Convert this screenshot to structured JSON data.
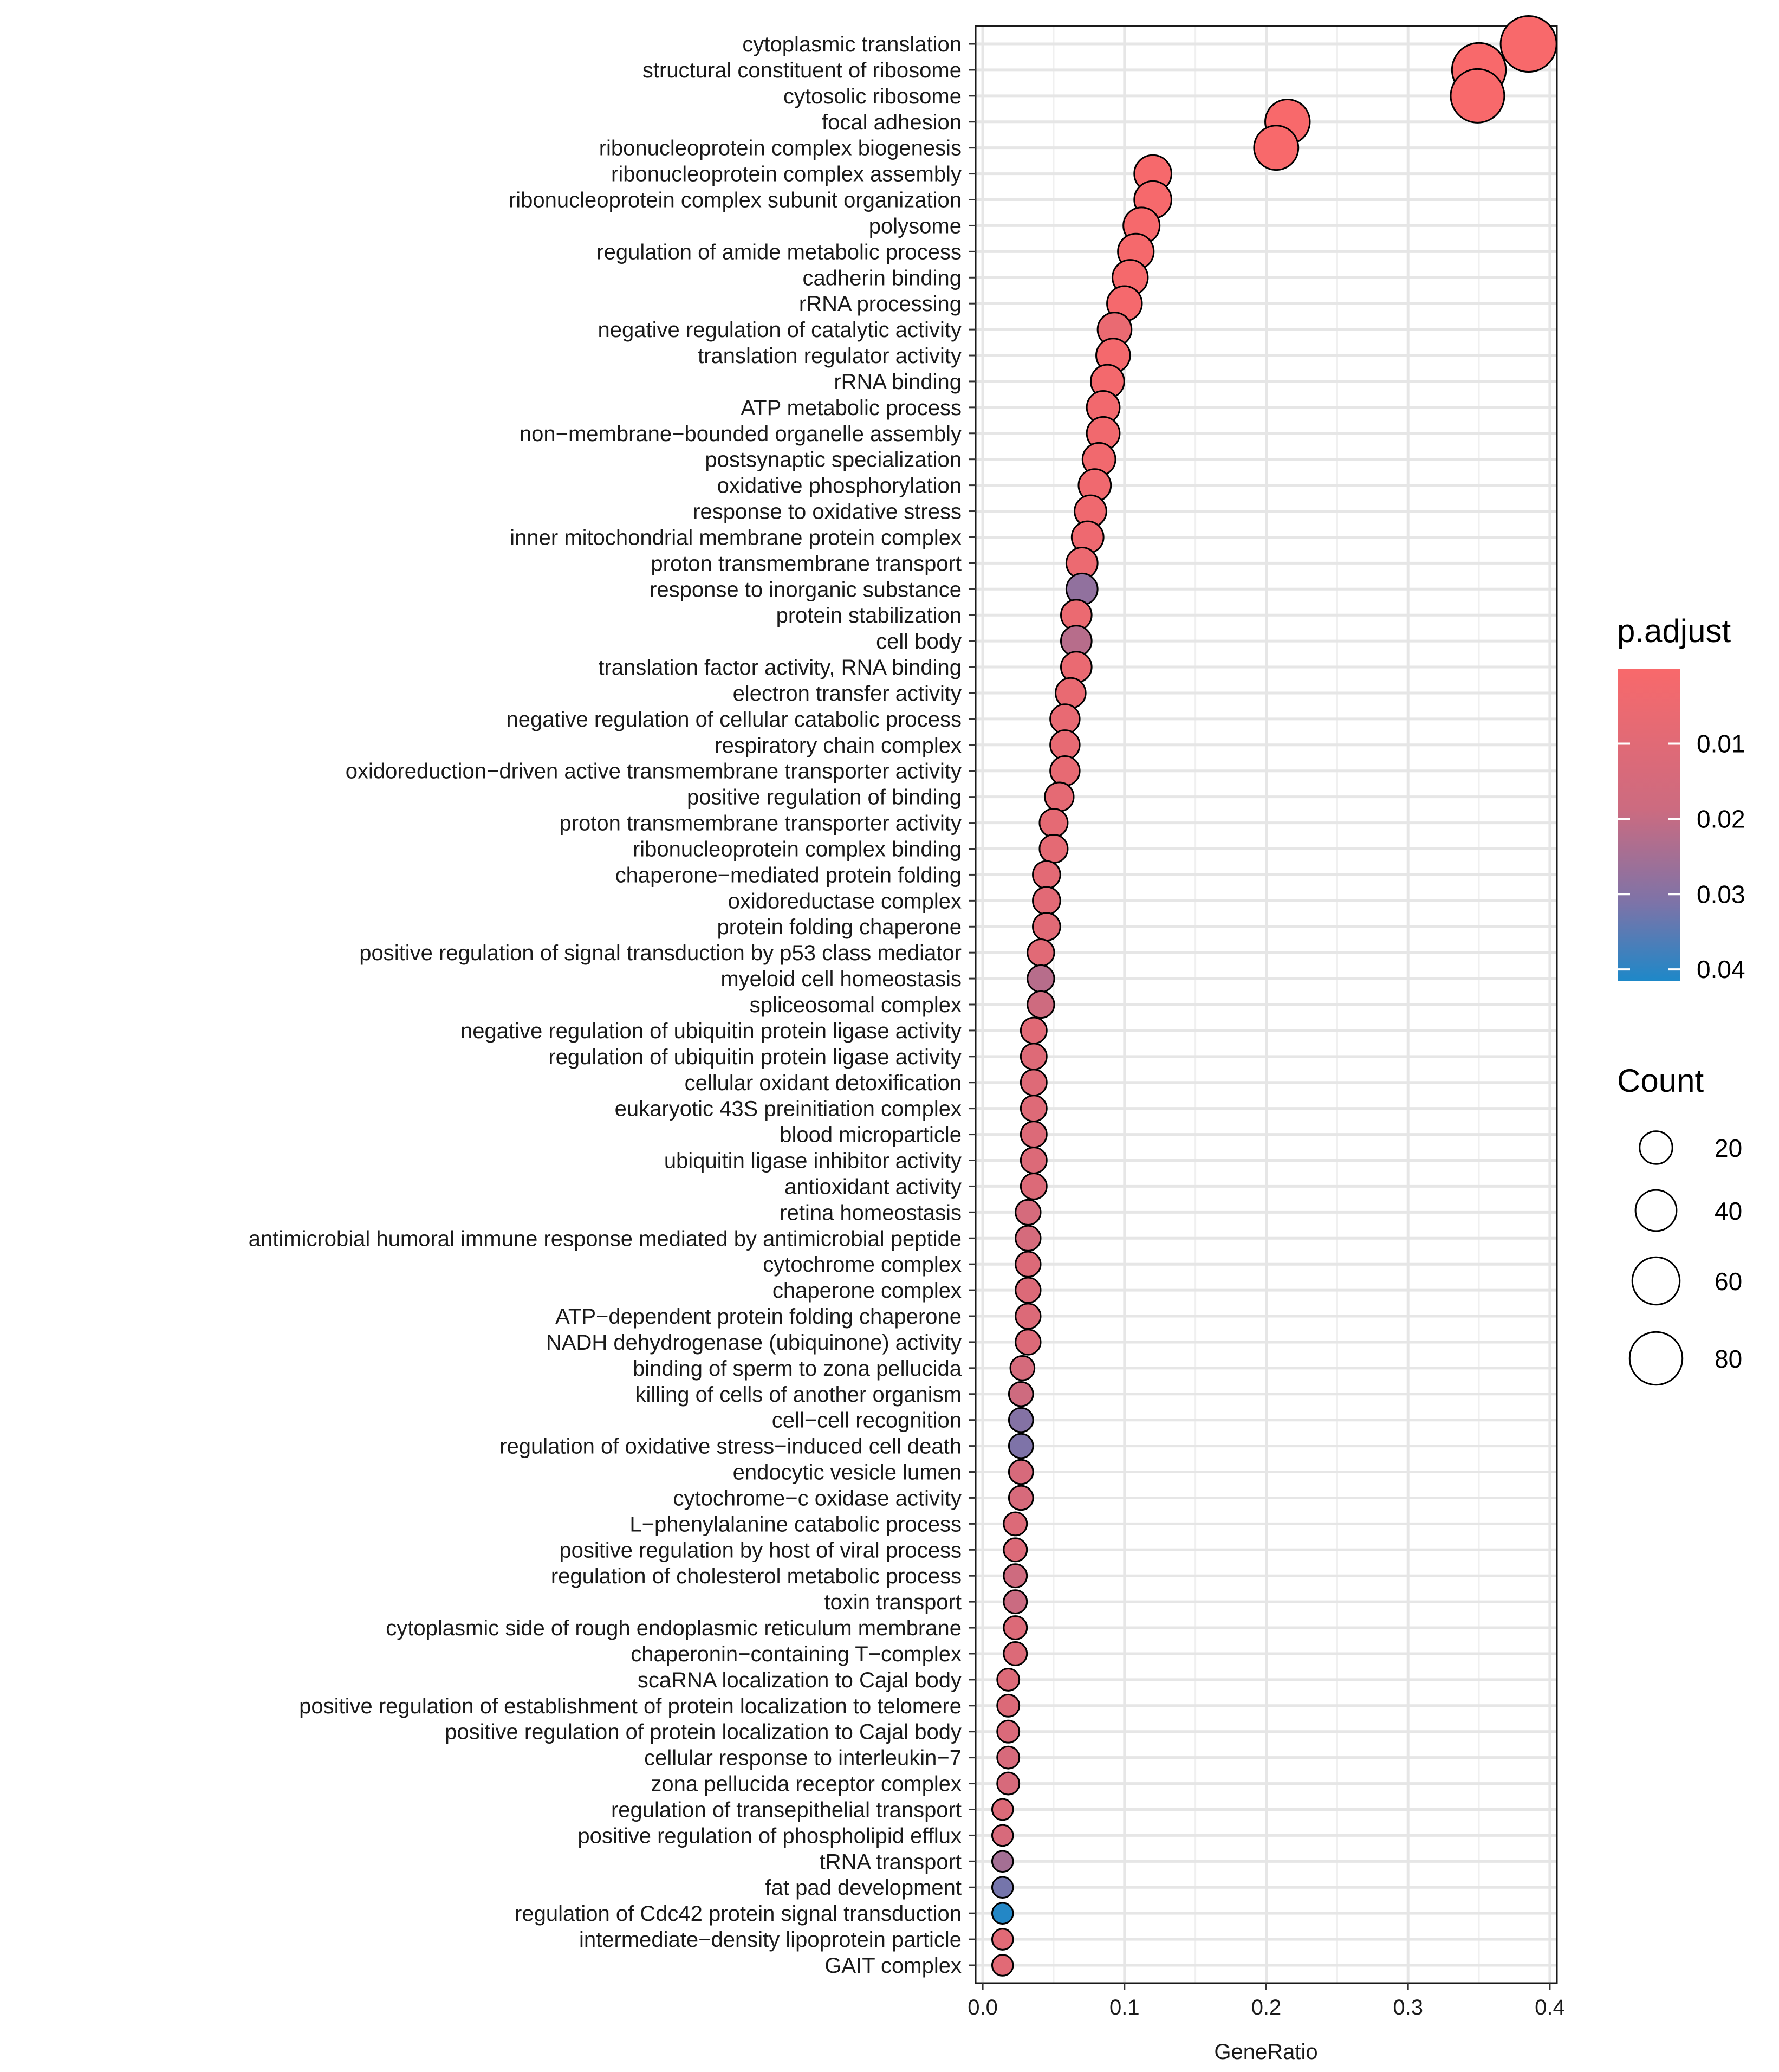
{
  "chart_data": {
    "type": "scatter",
    "subtype": "dotplot",
    "xlabel": "GeneRatio",
    "ylabel": "",
    "xlim": [
      -0.005,
      0.405
    ],
    "xticks": [
      0.0,
      0.1,
      0.2,
      0.3,
      0.4
    ],
    "xtick_labels": [
      "0.0",
      "0.1",
      "0.2",
      "0.3",
      "0.4"
    ],
    "grid": true,
    "legend_position": "right",
    "color_legend": {
      "title": "p.adjust",
      "range": [
        0.0001,
        0.0415
      ],
      "low_color": "#F8696B",
      "high_color": "#1E88C8",
      "ticks": [
        0.01,
        0.02,
        0.03,
        0.04
      ],
      "tick_labels": [
        "0.01",
        "0.02",
        "0.03",
        "0.04"
      ]
    },
    "size_legend": {
      "title": "Count",
      "values": [
        20,
        40,
        60,
        80
      ],
      "labels": [
        "20",
        "40",
        "60",
        "80"
      ],
      "max_count": 90
    },
    "terms": [
      "cytoplasmic translation",
      "structural constituent of ribosome",
      "cytosolic ribosome",
      "focal adhesion",
      "ribonucleoprotein complex biogenesis",
      "ribonucleoprotein complex assembly",
      "ribonucleoprotein complex subunit organization",
      "polysome",
      "regulation of amide metabolic process",
      "cadherin binding",
      "rRNA processing",
      "negative regulation of catalytic activity",
      "translation regulator activity",
      "rRNA binding",
      "ATP metabolic process",
      "non−membrane−bounded organelle assembly",
      "postsynaptic specialization",
      "oxidative phosphorylation",
      "response to oxidative stress",
      "inner mitochondrial membrane protein complex",
      "proton transmembrane transport",
      "response to inorganic substance",
      "protein stabilization",
      "cell body",
      "translation factor activity, RNA binding",
      "electron transfer activity",
      "negative regulation of cellular catabolic process",
      "respiratory chain complex",
      "oxidoreduction−driven active transmembrane transporter activity",
      "positive regulation of binding",
      "proton transmembrane transporter activity",
      "ribonucleoprotein complex binding",
      "chaperone−mediated protein folding",
      "oxidoreductase complex",
      "protein folding chaperone",
      "positive regulation of signal transduction by p53 class mediator",
      "myeloid cell homeostasis",
      "spliceosomal complex",
      "negative regulation of ubiquitin protein ligase activity",
      "regulation of ubiquitin protein ligase activity",
      "cellular oxidant detoxification",
      "eukaryotic 43S preinitiation complex",
      "blood microparticle",
      "ubiquitin ligase inhibitor activity",
      "antioxidant activity",
      "retina homeostasis",
      "antimicrobial humoral immune response mediated by antimicrobial peptide",
      "cytochrome complex",
      "chaperone complex",
      "ATP−dependent protein folding chaperone",
      "NADH dehydrogenase (ubiquinone) activity",
      "binding of sperm to zona pellucida",
      "killing of cells of another organism",
      "cell−cell recognition",
      "regulation of oxidative stress−induced cell death",
      "endocytic vesicle lumen",
      "cytochrome−c oxidase activity",
      "L−phenylalanine catabolic process",
      "positive regulation by host of viral process",
      "regulation of cholesterol metabolic process",
      "toxin transport",
      "cytoplasmic side of rough endoplasmic reticulum membrane",
      "chaperonin−containing T−complex",
      "scaRNA localization to Cajal body",
      "positive regulation of establishment of protein localization to telomere",
      "positive regulation of protein localization to Cajal body",
      "cellular response to interleukin−7",
      "zona pellucida receptor complex",
      "regulation of transepithelial transport",
      "positive regulation of phospholipid efflux",
      "tRNA transport",
      "fat pad development",
      "regulation of Cdc42 protein signal transduction",
      "intermediate−density lipoprotein particle",
      "GAIT complex"
    ],
    "gene_ratio": [
      0.385,
      0.35,
      0.349,
      0.215,
      0.207,
      0.12,
      0.12,
      0.112,
      0.108,
      0.104,
      0.1,
      0.093,
      0.092,
      0.088,
      0.085,
      0.085,
      0.082,
      0.079,
      0.076,
      0.074,
      0.07,
      0.07,
      0.066,
      0.066,
      0.066,
      0.062,
      0.058,
      0.058,
      0.058,
      0.054,
      0.05,
      0.05,
      0.045,
      0.045,
      0.045,
      0.041,
      0.041,
      0.041,
      0.036,
      0.036,
      0.036,
      0.036,
      0.036,
      0.036,
      0.036,
      0.032,
      0.032,
      0.032,
      0.032,
      0.032,
      0.032,
      0.028,
      0.027,
      0.027,
      0.027,
      0.027,
      0.027,
      0.023,
      0.023,
      0.023,
      0.023,
      0.023,
      0.023,
      0.018,
      0.018,
      0.018,
      0.018,
      0.018,
      0.014,
      0.014,
      0.014,
      0.014,
      0.014,
      0.014,
      0.014
    ],
    "count": [
      88,
      80,
      79,
      48,
      47,
      28,
      28,
      26,
      25,
      24,
      23,
      21,
      21,
      20,
      19,
      19,
      19,
      18,
      17,
      17,
      16,
      16,
      15,
      15,
      15,
      14,
      13,
      13,
      13,
      12,
      11,
      11,
      10,
      10,
      10,
      9,
      9,
      9,
      8,
      8,
      8,
      8,
      8,
      8,
      8,
      7,
      7,
      7,
      7,
      7,
      7,
      6,
      6,
      6,
      6,
      6,
      6,
      5,
      5,
      5,
      5,
      5,
      5,
      4,
      4,
      4,
      4,
      4,
      3,
      3,
      3,
      3,
      3,
      3,
      3
    ],
    "p_adjust": [
      0.0001,
      0.0001,
      0.0001,
      0.0002,
      0.0002,
      0.0008,
      0.0009,
      0.001,
      0.0012,
      0.0014,
      0.0015,
      0.006,
      0.002,
      0.0022,
      0.0025,
      0.003,
      0.0032,
      0.0035,
      0.004,
      0.0045,
      0.005,
      0.028,
      0.0055,
      0.022,
      0.006,
      0.0065,
      0.007,
      0.0072,
      0.0075,
      0.008,
      0.0082,
      0.0085,
      0.009,
      0.0095,
      0.0098,
      0.01,
      0.022,
      0.018,
      0.01,
      0.011,
      0.011,
      0.011,
      0.012,
      0.012,
      0.012,
      0.015,
      0.015,
      0.012,
      0.012,
      0.012,
      0.012,
      0.015,
      0.018,
      0.03,
      0.031,
      0.014,
      0.014,
      0.012,
      0.012,
      0.018,
      0.019,
      0.012,
      0.012,
      0.012,
      0.012,
      0.013,
      0.014,
      0.014,
      0.012,
      0.014,
      0.025,
      0.032,
      0.041,
      0.01,
      0.01
    ]
  }
}
